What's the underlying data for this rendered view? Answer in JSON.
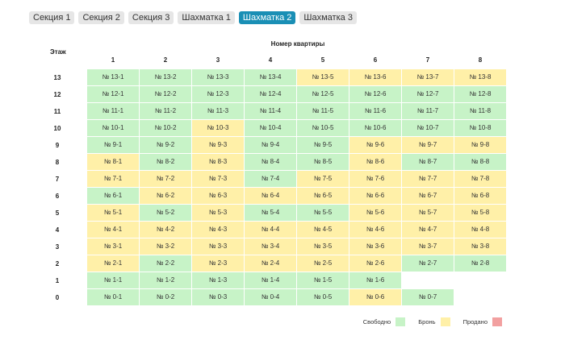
{
  "tabs": [
    {
      "label": "Секция 1",
      "active": false
    },
    {
      "label": "Секция 2",
      "active": false
    },
    {
      "label": "Секция 3",
      "active": false
    },
    {
      "label": "Шахматка 1",
      "active": false
    },
    {
      "label": "Шахматка 2",
      "active": true
    },
    {
      "label": "Шахматка 3",
      "active": false
    }
  ],
  "grid": {
    "floor_label": "Этаж",
    "apartment_label": "Номер квартиры",
    "columns": [
      "1",
      "2",
      "3",
      "4",
      "5",
      "6",
      "7",
      "8"
    ],
    "rows": [
      {
        "floor": "13",
        "cells": [
          {
            "label": "№ 13-1",
            "status": "free"
          },
          {
            "label": "№ 13-2",
            "status": "free"
          },
          {
            "label": "№ 13-3",
            "status": "free"
          },
          {
            "label": "№ 13-4",
            "status": "free"
          },
          {
            "label": "№ 13-5",
            "status": "booked"
          },
          {
            "label": "№ 13-6",
            "status": "booked"
          },
          {
            "label": "№ 13-7",
            "status": "booked"
          },
          {
            "label": "№ 13-8",
            "status": "booked"
          }
        ]
      },
      {
        "floor": "12",
        "cells": [
          {
            "label": "№ 12-1",
            "status": "free"
          },
          {
            "label": "№ 12-2",
            "status": "free"
          },
          {
            "label": "№ 12-3",
            "status": "free"
          },
          {
            "label": "№ 12-4",
            "status": "free"
          },
          {
            "label": "№ 12-5",
            "status": "free"
          },
          {
            "label": "№ 12-6",
            "status": "free"
          },
          {
            "label": "№ 12-7",
            "status": "free"
          },
          {
            "label": "№ 12-8",
            "status": "free"
          }
        ]
      },
      {
        "floor": "11",
        "cells": [
          {
            "label": "№ 11-1",
            "status": "free"
          },
          {
            "label": "№ 11-2",
            "status": "free"
          },
          {
            "label": "№ 11-3",
            "status": "free"
          },
          {
            "label": "№ 11-4",
            "status": "free"
          },
          {
            "label": "№ 11-5",
            "status": "free"
          },
          {
            "label": "№ 11-6",
            "status": "free"
          },
          {
            "label": "№ 11-7",
            "status": "free"
          },
          {
            "label": "№ 11-8",
            "status": "free"
          }
        ]
      },
      {
        "floor": "10",
        "cells": [
          {
            "label": "№ 10-1",
            "status": "free"
          },
          {
            "label": "№ 10-2",
            "status": "free"
          },
          {
            "label": "№ 10-3",
            "status": "booked"
          },
          {
            "label": "№ 10-4",
            "status": "free"
          },
          {
            "label": "№ 10-5",
            "status": "free"
          },
          {
            "label": "№ 10-6",
            "status": "free"
          },
          {
            "label": "№ 10-7",
            "status": "free"
          },
          {
            "label": "№ 10-8",
            "status": "free"
          }
        ]
      },
      {
        "floor": "9",
        "cells": [
          {
            "label": "№ 9-1",
            "status": "free"
          },
          {
            "label": "№ 9-2",
            "status": "free"
          },
          {
            "label": "№ 9-3",
            "status": "booked"
          },
          {
            "label": "№ 9-4",
            "status": "free"
          },
          {
            "label": "№ 9-5",
            "status": "free"
          },
          {
            "label": "№ 9-6",
            "status": "booked"
          },
          {
            "label": "№ 9-7",
            "status": "booked"
          },
          {
            "label": "№ 9-8",
            "status": "booked"
          }
        ]
      },
      {
        "floor": "8",
        "cells": [
          {
            "label": "№ 8-1",
            "status": "booked"
          },
          {
            "label": "№ 8-2",
            "status": "free"
          },
          {
            "label": "№ 8-3",
            "status": "booked"
          },
          {
            "label": "№ 8-4",
            "status": "free"
          },
          {
            "label": "№ 8-5",
            "status": "free"
          },
          {
            "label": "№ 8-6",
            "status": "booked"
          },
          {
            "label": "№ 8-7",
            "status": "free"
          },
          {
            "label": "№ 8-8",
            "status": "free"
          }
        ]
      },
      {
        "floor": "7",
        "cells": [
          {
            "label": "№ 7-1",
            "status": "booked"
          },
          {
            "label": "№ 7-2",
            "status": "booked"
          },
          {
            "label": "№ 7-3",
            "status": "booked"
          },
          {
            "label": "№ 7-4",
            "status": "free"
          },
          {
            "label": "№ 7-5",
            "status": "booked"
          },
          {
            "label": "№ 7-6",
            "status": "booked"
          },
          {
            "label": "№ 7-7",
            "status": "booked"
          },
          {
            "label": "№ 7-8",
            "status": "booked"
          }
        ]
      },
      {
        "floor": "6",
        "cells": [
          {
            "label": "№ 6-1",
            "status": "free"
          },
          {
            "label": "№ 6-2",
            "status": "booked"
          },
          {
            "label": "№ 6-3",
            "status": "booked"
          },
          {
            "label": "№ 6-4",
            "status": "booked"
          },
          {
            "label": "№ 6-5",
            "status": "booked"
          },
          {
            "label": "№ 6-6",
            "status": "booked"
          },
          {
            "label": "№ 6-7",
            "status": "booked"
          },
          {
            "label": "№ 6-8",
            "status": "booked"
          }
        ]
      },
      {
        "floor": "5",
        "cells": [
          {
            "label": "№ 5-1",
            "status": "booked"
          },
          {
            "label": "№ 5-2",
            "status": "free"
          },
          {
            "label": "№ 5-3",
            "status": "booked"
          },
          {
            "label": "№ 5-4",
            "status": "free"
          },
          {
            "label": "№ 5-5",
            "status": "free"
          },
          {
            "label": "№ 5-6",
            "status": "booked"
          },
          {
            "label": "№ 5-7",
            "status": "booked"
          },
          {
            "label": "№ 5-8",
            "status": "booked"
          }
        ]
      },
      {
        "floor": "4",
        "cells": [
          {
            "label": "№ 4-1",
            "status": "booked"
          },
          {
            "label": "№ 4-2",
            "status": "booked"
          },
          {
            "label": "№ 4-3",
            "status": "booked"
          },
          {
            "label": "№ 4-4",
            "status": "booked"
          },
          {
            "label": "№ 4-5",
            "status": "booked"
          },
          {
            "label": "№ 4-6",
            "status": "booked"
          },
          {
            "label": "№ 4-7",
            "status": "booked"
          },
          {
            "label": "№ 4-8",
            "status": "booked"
          }
        ]
      },
      {
        "floor": "3",
        "cells": [
          {
            "label": "№ 3-1",
            "status": "booked"
          },
          {
            "label": "№ 3-2",
            "status": "booked"
          },
          {
            "label": "№ 3-3",
            "status": "booked"
          },
          {
            "label": "№ 3-4",
            "status": "booked"
          },
          {
            "label": "№ 3-5",
            "status": "booked"
          },
          {
            "label": "№ 3-6",
            "status": "booked"
          },
          {
            "label": "№ 3-7",
            "status": "booked"
          },
          {
            "label": "№ 3-8",
            "status": "booked"
          }
        ]
      },
      {
        "floor": "2",
        "cells": [
          {
            "label": "№ 2-1",
            "status": "booked"
          },
          {
            "label": "№ 2-2",
            "status": "free"
          },
          {
            "label": "№ 2-3",
            "status": "booked"
          },
          {
            "label": "№ 2-4",
            "status": "booked"
          },
          {
            "label": "№ 2-5",
            "status": "booked"
          },
          {
            "label": "№ 2-6",
            "status": "booked"
          },
          {
            "label": "№ 2-7",
            "status": "free"
          },
          {
            "label": "№ 2-8",
            "status": "free"
          }
        ]
      },
      {
        "floor": "1",
        "cells": [
          {
            "label": "№ 1-1",
            "status": "free"
          },
          {
            "label": "№ 1-2",
            "status": "free"
          },
          {
            "label": "№ 1-3",
            "status": "free"
          },
          {
            "label": "№ 1-4",
            "status": "free"
          },
          {
            "label": "№ 1-5",
            "status": "free"
          },
          {
            "label": "№ 1-6",
            "status": "free"
          }
        ]
      },
      {
        "floor": "0",
        "cells": [
          {
            "label": "№ 0-1",
            "status": "free"
          },
          {
            "label": "№ 0-2",
            "status": "free"
          },
          {
            "label": "№ 0-3",
            "status": "free"
          },
          {
            "label": "№ 0-4",
            "status": "free"
          },
          {
            "label": "№ 0-5",
            "status": "free"
          },
          {
            "label": "№ 0-6",
            "status": "booked"
          },
          {
            "label": "№ 0-7",
            "status": "free"
          }
        ]
      }
    ]
  },
  "legend": [
    {
      "label": "Свободно",
      "status": "free"
    },
    {
      "label": "Бронь",
      "status": "booked"
    },
    {
      "label": "Продано",
      "status": "sold"
    }
  ],
  "colors": {
    "free": "#c7f3c7",
    "booked": "#fff0a8",
    "sold": "#f2a0a0",
    "active_tab": "#1a8fb5"
  }
}
